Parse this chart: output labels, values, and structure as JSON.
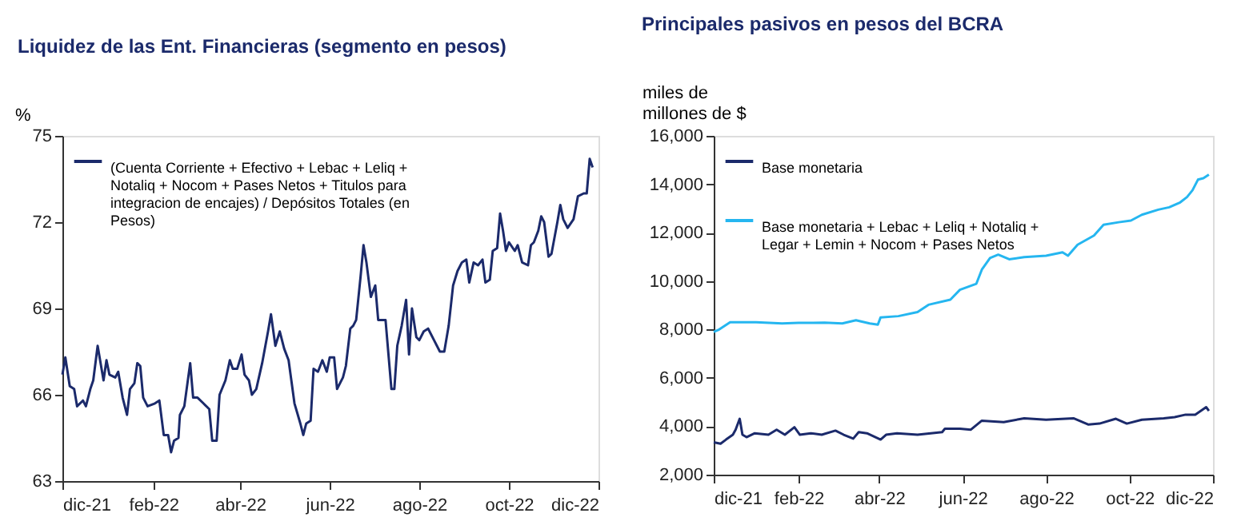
{
  "chart_data": [
    {
      "type": "line",
      "title": "Liquidez de las Ent. Financieras (segmento en pesos)",
      "ylabel": "%",
      "xlim": [
        "2021-12-01",
        "2022-12-01"
      ],
      "xticks": [
        {
          "value": "2021-12-01",
          "label": "dic-21"
        },
        {
          "value": "2022-02-01",
          "label": "feb-22"
        },
        {
          "value": "2022-04-01",
          "label": "abr-22"
        },
        {
          "value": "2022-06-01",
          "label": "jun-22"
        },
        {
          "value": "2022-08-01",
          "label": "ago-22"
        },
        {
          "value": "2022-10-01",
          "label": "oct-22"
        },
        {
          "value": "2022-12-01",
          "label": "dic-22"
        }
      ],
      "ylim": [
        63,
        75
      ],
      "yticks": [
        63,
        66,
        69,
        72,
        75
      ],
      "grid": false,
      "legend": "top left",
      "marker": "none",
      "line_style": "solid",
      "series": [
        {
          "name": "(Cuenta Corriente + Efectivo + Lebac + Leliq + Notaliq + Nocom + Pases Netos + Titulos para integracion de encajes) / Depósitos Totales (en Pesos)",
          "color": "#1b2a6b",
          "x": [
            "2021-12-01",
            "2021-12-03",
            "2021-12-06",
            "2021-12-09",
            "2021-12-11",
            "2021-12-15",
            "2021-12-17",
            "2021-12-20",
            "2021-12-22",
            "2021-12-25",
            "2021-12-28",
            "2021-12-29",
            "2021-12-31",
            "2022-01-02",
            "2022-01-06",
            "2022-01-08",
            "2022-01-11",
            "2022-01-14",
            "2022-01-16",
            "2022-01-19",
            "2022-01-21",
            "2022-01-23",
            "2022-01-25",
            "2022-01-28",
            "2022-02-02",
            "2022-02-05",
            "2022-02-08",
            "2022-02-11",
            "2022-02-13",
            "2022-02-15",
            "2022-02-18",
            "2022-02-19",
            "2022-02-22",
            "2022-02-26",
            "2022-02-28",
            "2022-03-03",
            "2022-03-07",
            "2022-03-11",
            "2022-03-13",
            "2022-03-16",
            "2022-03-18",
            "2022-03-22",
            "2022-03-25",
            "2022-03-27",
            "2022-03-30",
            "2022-04-02",
            "2022-04-04",
            "2022-04-07",
            "2022-04-09",
            "2022-04-12",
            "2022-04-16",
            "2022-04-20",
            "2022-04-22",
            "2022-04-25",
            "2022-04-28",
            "2022-05-01",
            "2022-05-04",
            "2022-05-08",
            "2022-05-12",
            "2022-05-14",
            "2022-05-16",
            "2022-05-19",
            "2022-05-21",
            "2022-05-24",
            "2022-05-27",
            "2022-05-30",
            "2022-06-01",
            "2022-06-04",
            "2022-06-06",
            "2022-06-10",
            "2022-06-12",
            "2022-06-15",
            "2022-06-17",
            "2022-06-19",
            "2022-06-22",
            "2022-06-24",
            "2022-06-26",
            "2022-06-29",
            "2022-07-02",
            "2022-07-04",
            "2022-07-07",
            "2022-07-09",
            "2022-07-11",
            "2022-07-13",
            "2022-07-15",
            "2022-07-17",
            "2022-07-20",
            "2022-07-23",
            "2022-07-25",
            "2022-07-27",
            "2022-07-30",
            "2022-08-01",
            "2022-08-04",
            "2022-08-07",
            "2022-08-11",
            "2022-08-15",
            "2022-08-18",
            "2022-08-21",
            "2022-08-24",
            "2022-08-27",
            "2022-08-30",
            "2022-09-02",
            "2022-09-04",
            "2022-09-07",
            "2022-09-10",
            "2022-09-13",
            "2022-09-15",
            "2022-09-18",
            "2022-09-20",
            "2022-09-23",
            "2022-09-25",
            "2022-09-27",
            "2022-09-29",
            "2022-10-01",
            "2022-10-05",
            "2022-10-07",
            "2022-10-10",
            "2022-10-14",
            "2022-10-16",
            "2022-10-18",
            "2022-10-21",
            "2022-10-23",
            "2022-10-25",
            "2022-10-28",
            "2022-10-30",
            "2022-11-03",
            "2022-11-05",
            "2022-11-07",
            "2022-11-10",
            "2022-11-14",
            "2022-11-17",
            "2022-11-21",
            "2022-11-23",
            "2022-11-25",
            "2022-11-27"
          ],
          "values": [
            66.7,
            67.3,
            66.3,
            66.2,
            65.6,
            65.8,
            65.6,
            66.2,
            66.5,
            67.7,
            66.8,
            66.5,
            67.2,
            66.7,
            66.6,
            66.8,
            65.9,
            65.3,
            66.2,
            66.4,
            67.1,
            67.0,
            65.9,
            65.6,
            65.7,
            65.8,
            64.6,
            64.6,
            64.0,
            64.4,
            64.5,
            65.3,
            65.6,
            67.1,
            65.9,
            65.9,
            65.7,
            65.5,
            64.4,
            64.4,
            66.0,
            66.5,
            67.2,
            66.9,
            66.9,
            67.4,
            66.7,
            66.5,
            66.0,
            66.2,
            67.1,
            68.2,
            68.8,
            67.7,
            68.2,
            67.6,
            67.2,
            65.7,
            65.0,
            64.6,
            65.0,
            65.1,
            66.9,
            66.8,
            67.2,
            66.8,
            67.3,
            67.3,
            66.2,
            66.6,
            67.0,
            68.3,
            68.4,
            68.6,
            70.1,
            71.2,
            70.6,
            69.4,
            69.8,
            68.6,
            68.6,
            68.6,
            67.4,
            66.2,
            66.2,
            67.7,
            68.4,
            69.3,
            67.4,
            69.0,
            68.0,
            67.9,
            68.2,
            68.3,
            67.9,
            67.5,
            67.5,
            68.4,
            69.8,
            70.3,
            70.6,
            70.7,
            69.9,
            70.6,
            70.5,
            70.7,
            69.9,
            70.0,
            71.0,
            71.1,
            72.3,
            71.7,
            71.0,
            71.3,
            71.0,
            71.2,
            70.6,
            70.5,
            71.2,
            71.3,
            71.7,
            72.2,
            72.0,
            70.8,
            70.9,
            72.0,
            72.6,
            72.1,
            71.8,
            72.1,
            72.9,
            73.0,
            73.0,
            74.2,
            73.9
          ]
        }
      ]
    },
    {
      "type": "line",
      "title": "Principales pasivos en pesos del BCRA",
      "ylabel": "miles de millones de $",
      "xlim": [
        "2021-12-01",
        "2022-12-01"
      ],
      "xticks": [
        {
          "value": "2021-12-01",
          "label": "dic-21"
        },
        {
          "value": "2022-02-01",
          "label": "feb-22"
        },
        {
          "value": "2022-04-01",
          "label": "abr-22"
        },
        {
          "value": "2022-06-01",
          "label": "jun-22"
        },
        {
          "value": "2022-08-01",
          "label": "ago-22"
        },
        {
          "value": "2022-10-01",
          "label": "oct-22"
        },
        {
          "value": "2022-12-01",
          "label": "dic-22"
        }
      ],
      "ylim": [
        2000,
        16000
      ],
      "yticks": [
        {
          "value": 2000,
          "label": "2,000"
        },
        {
          "value": 4000,
          "label": "4,000"
        },
        {
          "value": 6000,
          "label": "6,000"
        },
        {
          "value": 8000,
          "label": "8,000"
        },
        {
          "value": 10000,
          "label": "10,000"
        },
        {
          "value": 12000,
          "label": "12,000"
        },
        {
          "value": 14000,
          "label": "14,000"
        },
        {
          "value": 16000,
          "label": "16,000"
        }
      ],
      "grid": false,
      "legend": "top left",
      "marker": "none",
      "line_style": "solid",
      "series": [
        {
          "name": "Base monetaria",
          "color": "#1b2a6b",
          "x": [
            "2021-12-01",
            "2021-12-06",
            "2021-12-10",
            "2021-12-15",
            "2021-12-17",
            "2021-12-20",
            "2021-12-22",
            "2021-12-25",
            "2021-12-31",
            "2022-01-10",
            "2022-01-16",
            "2022-01-22",
            "2022-01-29",
            "2022-02-02",
            "2022-02-10",
            "2022-02-18",
            "2022-02-28",
            "2022-03-06",
            "2022-03-13",
            "2022-03-17",
            "2022-03-23",
            "2022-04-02",
            "2022-04-06",
            "2022-04-14",
            "2022-04-29",
            "2022-05-17",
            "2022-05-19",
            "2022-05-30",
            "2022-06-07",
            "2022-06-15",
            "2022-07-01",
            "2022-07-16",
            "2022-08-01",
            "2022-08-21",
            "2022-09-01",
            "2022-09-09",
            "2022-09-21",
            "2022-09-29",
            "2022-10-10",
            "2022-10-26",
            "2022-11-03",
            "2022-11-11",
            "2022-11-18",
            "2022-11-26",
            "2022-11-28"
          ],
          "values": [
            3340,
            3280,
            3450,
            3650,
            3860,
            4310,
            3650,
            3550,
            3710,
            3650,
            3860,
            3650,
            3960,
            3650,
            3710,
            3650,
            3820,
            3650,
            3490,
            3760,
            3710,
            3450,
            3650,
            3710,
            3650,
            3760,
            3900,
            3900,
            3860,
            4230,
            4170,
            4330,
            4270,
            4330,
            4070,
            4110,
            4310,
            4110,
            4270,
            4330,
            4380,
            4480,
            4480,
            4790,
            4640
          ]
        },
        {
          "name": "Base monetaria + Lebac + Leliq + Notaliq + Legar + Lemin + Nocom + Pases Netos",
          "color": "#25b6f0",
          "x": [
            "2021-12-01",
            "2021-12-05",
            "2021-12-13",
            "2022-01-01",
            "2022-01-20",
            "2022-02-01",
            "2022-02-20",
            "2022-03-05",
            "2022-03-15",
            "2022-03-25",
            "2022-03-31",
            "2022-04-02",
            "2022-04-15",
            "2022-04-29",
            "2022-05-07",
            "2022-05-23",
            "2022-05-30",
            "2022-06-11",
            "2022-06-15",
            "2022-06-21",
            "2022-06-27",
            "2022-07-05",
            "2022-07-16",
            "2022-08-01",
            "2022-08-13",
            "2022-08-17",
            "2022-08-24",
            "2022-09-05",
            "2022-09-12",
            "2022-09-23",
            "2022-10-02",
            "2022-10-10",
            "2022-10-22",
            "2022-10-30",
            "2022-11-07",
            "2022-11-12",
            "2022-11-16",
            "2022-11-20",
            "2022-11-24",
            "2022-11-28"
          ],
          "values": [
            7900,
            8000,
            8300,
            8300,
            8250,
            8270,
            8280,
            8250,
            8380,
            8250,
            8200,
            8500,
            8550,
            8720,
            9020,
            9230,
            9640,
            9890,
            10470,
            10950,
            11090,
            10900,
            10990,
            11050,
            11190,
            11050,
            11500,
            11880,
            12330,
            12430,
            12500,
            12740,
            12950,
            13050,
            13250,
            13470,
            13750,
            14190,
            14250,
            14400
          ]
        }
      ]
    }
  ]
}
